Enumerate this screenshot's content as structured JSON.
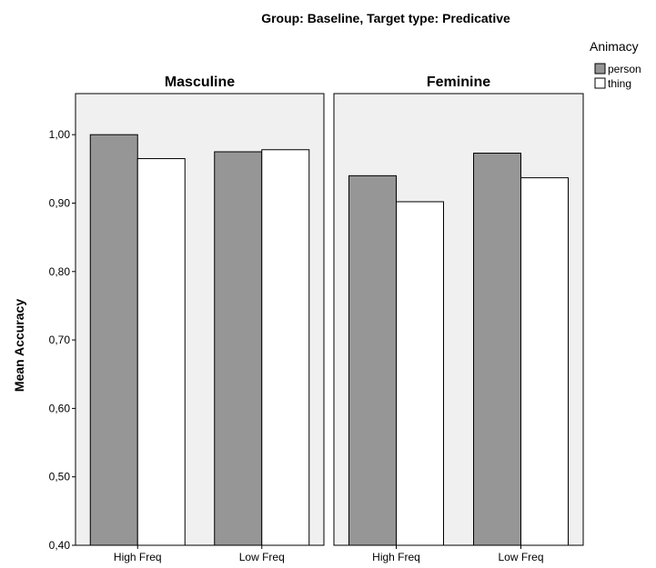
{
  "chart_data": {
    "type": "bar",
    "title": "Group: Baseline, Target type: Predicative",
    "ylabel": "Mean Accuracy",
    "ylim": [
      0.4,
      1.06
    ],
    "yticks": [
      "0,40",
      "0,50",
      "0,60",
      "0,70",
      "0,80",
      "0,90",
      "1,00"
    ],
    "ytick_values": [
      0.4,
      0.5,
      0.6,
      0.7,
      0.8,
      0.9,
      1.0
    ],
    "categories": [
      "High Freq",
      "Low Freq"
    ],
    "legend": {
      "title": "Animacy",
      "placement": "top-right",
      "items": [
        {
          "name": "person",
          "color": "#969696"
        },
        {
          "name": "thing",
          "color": "#ffffff"
        }
      ]
    },
    "panel_background": "#f0f0f0",
    "bar_stroke": "#000000",
    "panels": [
      {
        "title": "Masculine",
        "series": [
          {
            "name": "person",
            "values": [
              1.0,
              0.975
            ]
          },
          {
            "name": "thing",
            "values": [
              0.965,
              0.978
            ]
          }
        ]
      },
      {
        "title": "Feminine",
        "series": [
          {
            "name": "person",
            "values": [
              0.94,
              0.973
            ]
          },
          {
            "name": "thing",
            "values": [
              0.902,
              0.937
            ]
          }
        ]
      }
    ]
  }
}
